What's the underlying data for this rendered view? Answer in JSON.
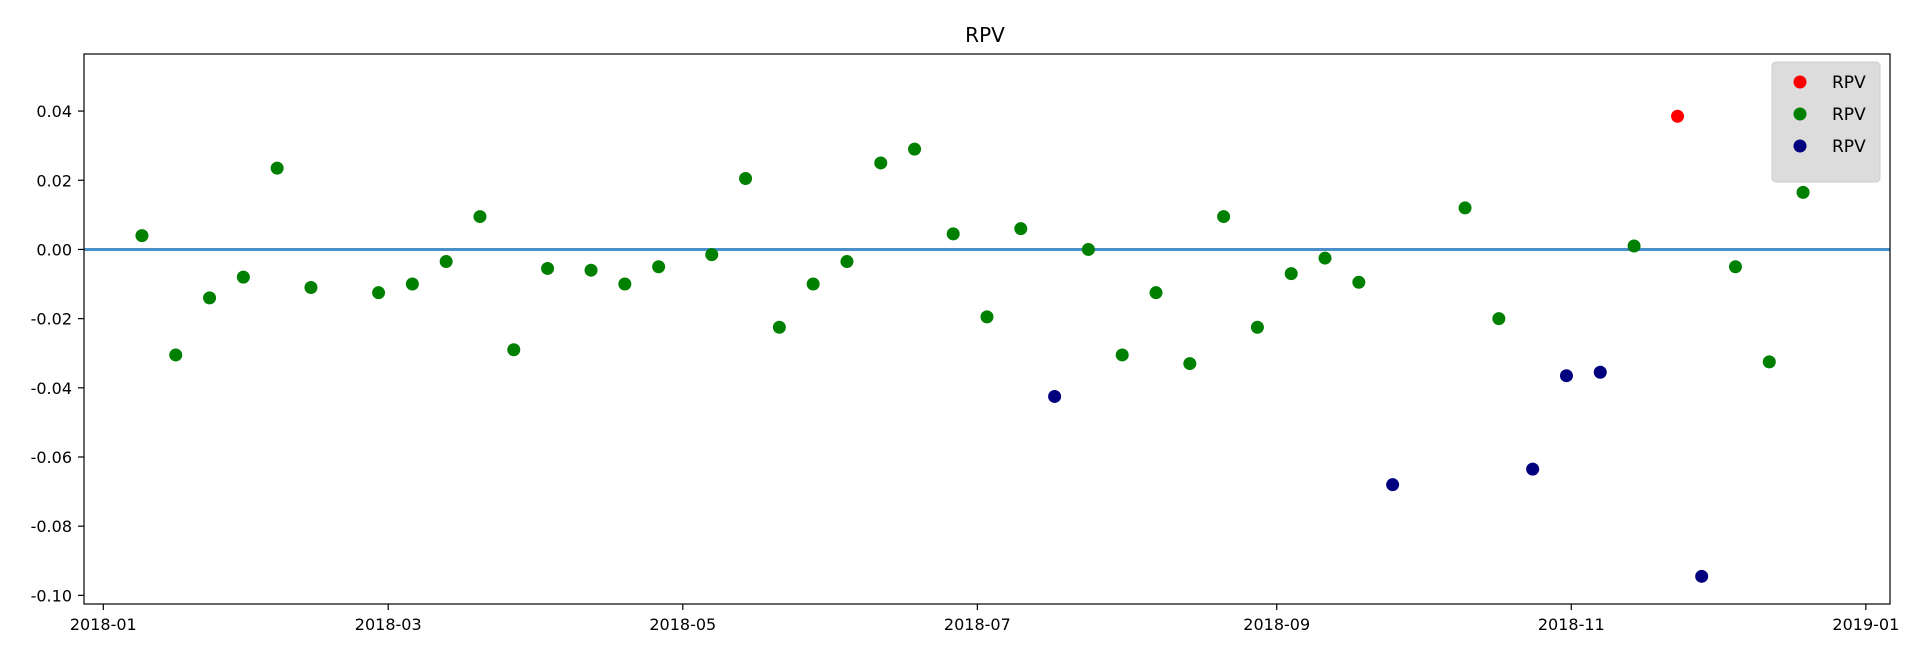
{
  "chart_data": {
    "type": "scatter",
    "title": "RPV",
    "xlabel": "",
    "ylabel": "",
    "x_type": "date",
    "xlim": [
      "2017-12-28",
      "2019-01-06"
    ],
    "ylim": [
      -0.1025,
      0.0565
    ],
    "x_ticks": [
      "2018-01-01",
      "2018-03-01",
      "2018-05-01",
      "2018-07-01",
      "2018-09-01",
      "2018-11-01",
      "2019-01-01"
    ],
    "x_tick_labels": [
      "2018-01",
      "2018-03",
      "2018-05",
      "2018-07",
      "2018-09",
      "2018-11",
      "2019-01"
    ],
    "y_ticks": [
      0.04,
      0.02,
      0.0,
      -0.02,
      -0.04,
      -0.06,
      -0.08,
      -0.1
    ],
    "y_tick_labels": [
      "0.04",
      "0.02",
      "0.00",
      "-0.02",
      "-0.04",
      "-0.06",
      "-0.08",
      "-0.10"
    ],
    "grid": false,
    "legend_position": "top-right",
    "reference_line": {
      "y": 0.0,
      "color": "#4a90c8"
    },
    "series": [
      {
        "name": "RPV",
        "color": "#ff0000",
        "points": [
          {
            "x": "2018-11-23",
            "y": 0.0385
          }
        ]
      },
      {
        "name": "RPV",
        "color": "#008000",
        "points": [
          {
            "x": "2018-01-09",
            "y": 0.004
          },
          {
            "x": "2018-01-16",
            "y": -0.0305
          },
          {
            "x": "2018-01-23",
            "y": -0.014
          },
          {
            "x": "2018-01-30",
            "y": -0.008
          },
          {
            "x": "2018-02-06",
            "y": 0.0235
          },
          {
            "x": "2018-02-13",
            "y": -0.011
          },
          {
            "x": "2018-02-27",
            "y": -0.0125
          },
          {
            "x": "2018-03-06",
            "y": -0.01
          },
          {
            "x": "2018-03-13",
            "y": -0.0035
          },
          {
            "x": "2018-03-20",
            "y": 0.0095
          },
          {
            "x": "2018-03-27",
            "y": -0.029
          },
          {
            "x": "2018-04-03",
            "y": -0.0055
          },
          {
            "x": "2018-04-12",
            "y": -0.006
          },
          {
            "x": "2018-04-19",
            "y": -0.01
          },
          {
            "x": "2018-04-26",
            "y": -0.005
          },
          {
            "x": "2018-05-07",
            "y": -0.0015
          },
          {
            "x": "2018-05-14",
            "y": 0.0205
          },
          {
            "x": "2018-05-21",
            "y": -0.0225
          },
          {
            "x": "2018-05-28",
            "y": -0.01
          },
          {
            "x": "2018-06-04",
            "y": -0.0035
          },
          {
            "x": "2018-06-11",
            "y": 0.025
          },
          {
            "x": "2018-06-18",
            "y": 0.029
          },
          {
            "x": "2018-06-26",
            "y": 0.0045
          },
          {
            "x": "2018-07-03",
            "y": -0.0195
          },
          {
            "x": "2018-07-10",
            "y": 0.006
          },
          {
            "x": "2018-07-24",
            "y": 0.0
          },
          {
            "x": "2018-07-31",
            "y": -0.0305
          },
          {
            "x": "2018-08-07",
            "y": -0.0125
          },
          {
            "x": "2018-08-14",
            "y": -0.033
          },
          {
            "x": "2018-08-21",
            "y": 0.0095
          },
          {
            "x": "2018-08-28",
            "y": -0.0225
          },
          {
            "x": "2018-09-04",
            "y": -0.007
          },
          {
            "x": "2018-09-11",
            "y": -0.0025
          },
          {
            "x": "2018-09-18",
            "y": -0.0095
          },
          {
            "x": "2018-10-10",
            "y": 0.012
          },
          {
            "x": "2018-10-17",
            "y": -0.02
          },
          {
            "x": "2018-11-14",
            "y": 0.001
          },
          {
            "x": "2018-12-05",
            "y": -0.005
          },
          {
            "x": "2018-12-12",
            "y": -0.0325
          },
          {
            "x": "2018-12-19",
            "y": 0.0165
          }
        ]
      },
      {
        "name": "RPV",
        "color": "#00007f",
        "points": [
          {
            "x": "2018-07-17",
            "y": -0.0425
          },
          {
            "x": "2018-09-25",
            "y": -0.068
          },
          {
            "x": "2018-10-24",
            "y": -0.0635
          },
          {
            "x": "2018-10-31",
            "y": -0.0365
          },
          {
            "x": "2018-11-07",
            "y": -0.0355
          },
          {
            "x": "2018-11-28",
            "y": -0.0945
          }
        ]
      }
    ]
  }
}
